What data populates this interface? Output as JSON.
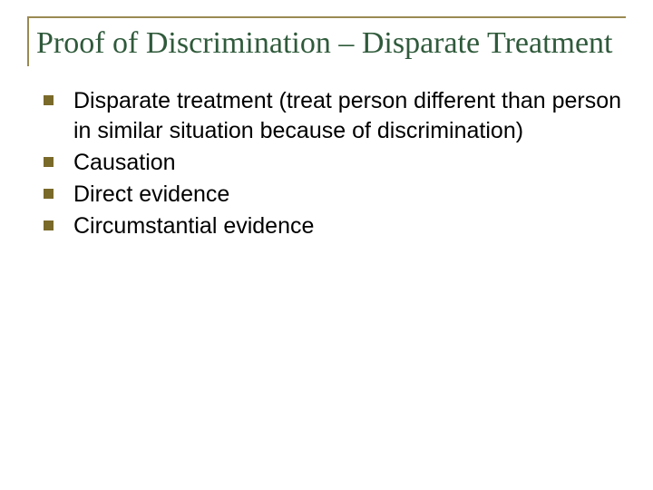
{
  "slide": {
    "title": "Proof of Discrimination – Disparate Treatment",
    "title_color": "#2f5a3b",
    "title_fontsize": 34,
    "title_border_color": "#9a8a52",
    "background_color": "#ffffff",
    "bullet_color": "#7a6a2a",
    "body_text_color": "#000000",
    "body_fontsize": 25,
    "items": [
      {
        "text": "Disparate treatment (treat person different than person in similar situation because of discrimination)"
      },
      {
        "text": "Causation"
      },
      {
        "text": "Direct evidence"
      },
      {
        "text": "Circumstantial evidence"
      }
    ]
  }
}
